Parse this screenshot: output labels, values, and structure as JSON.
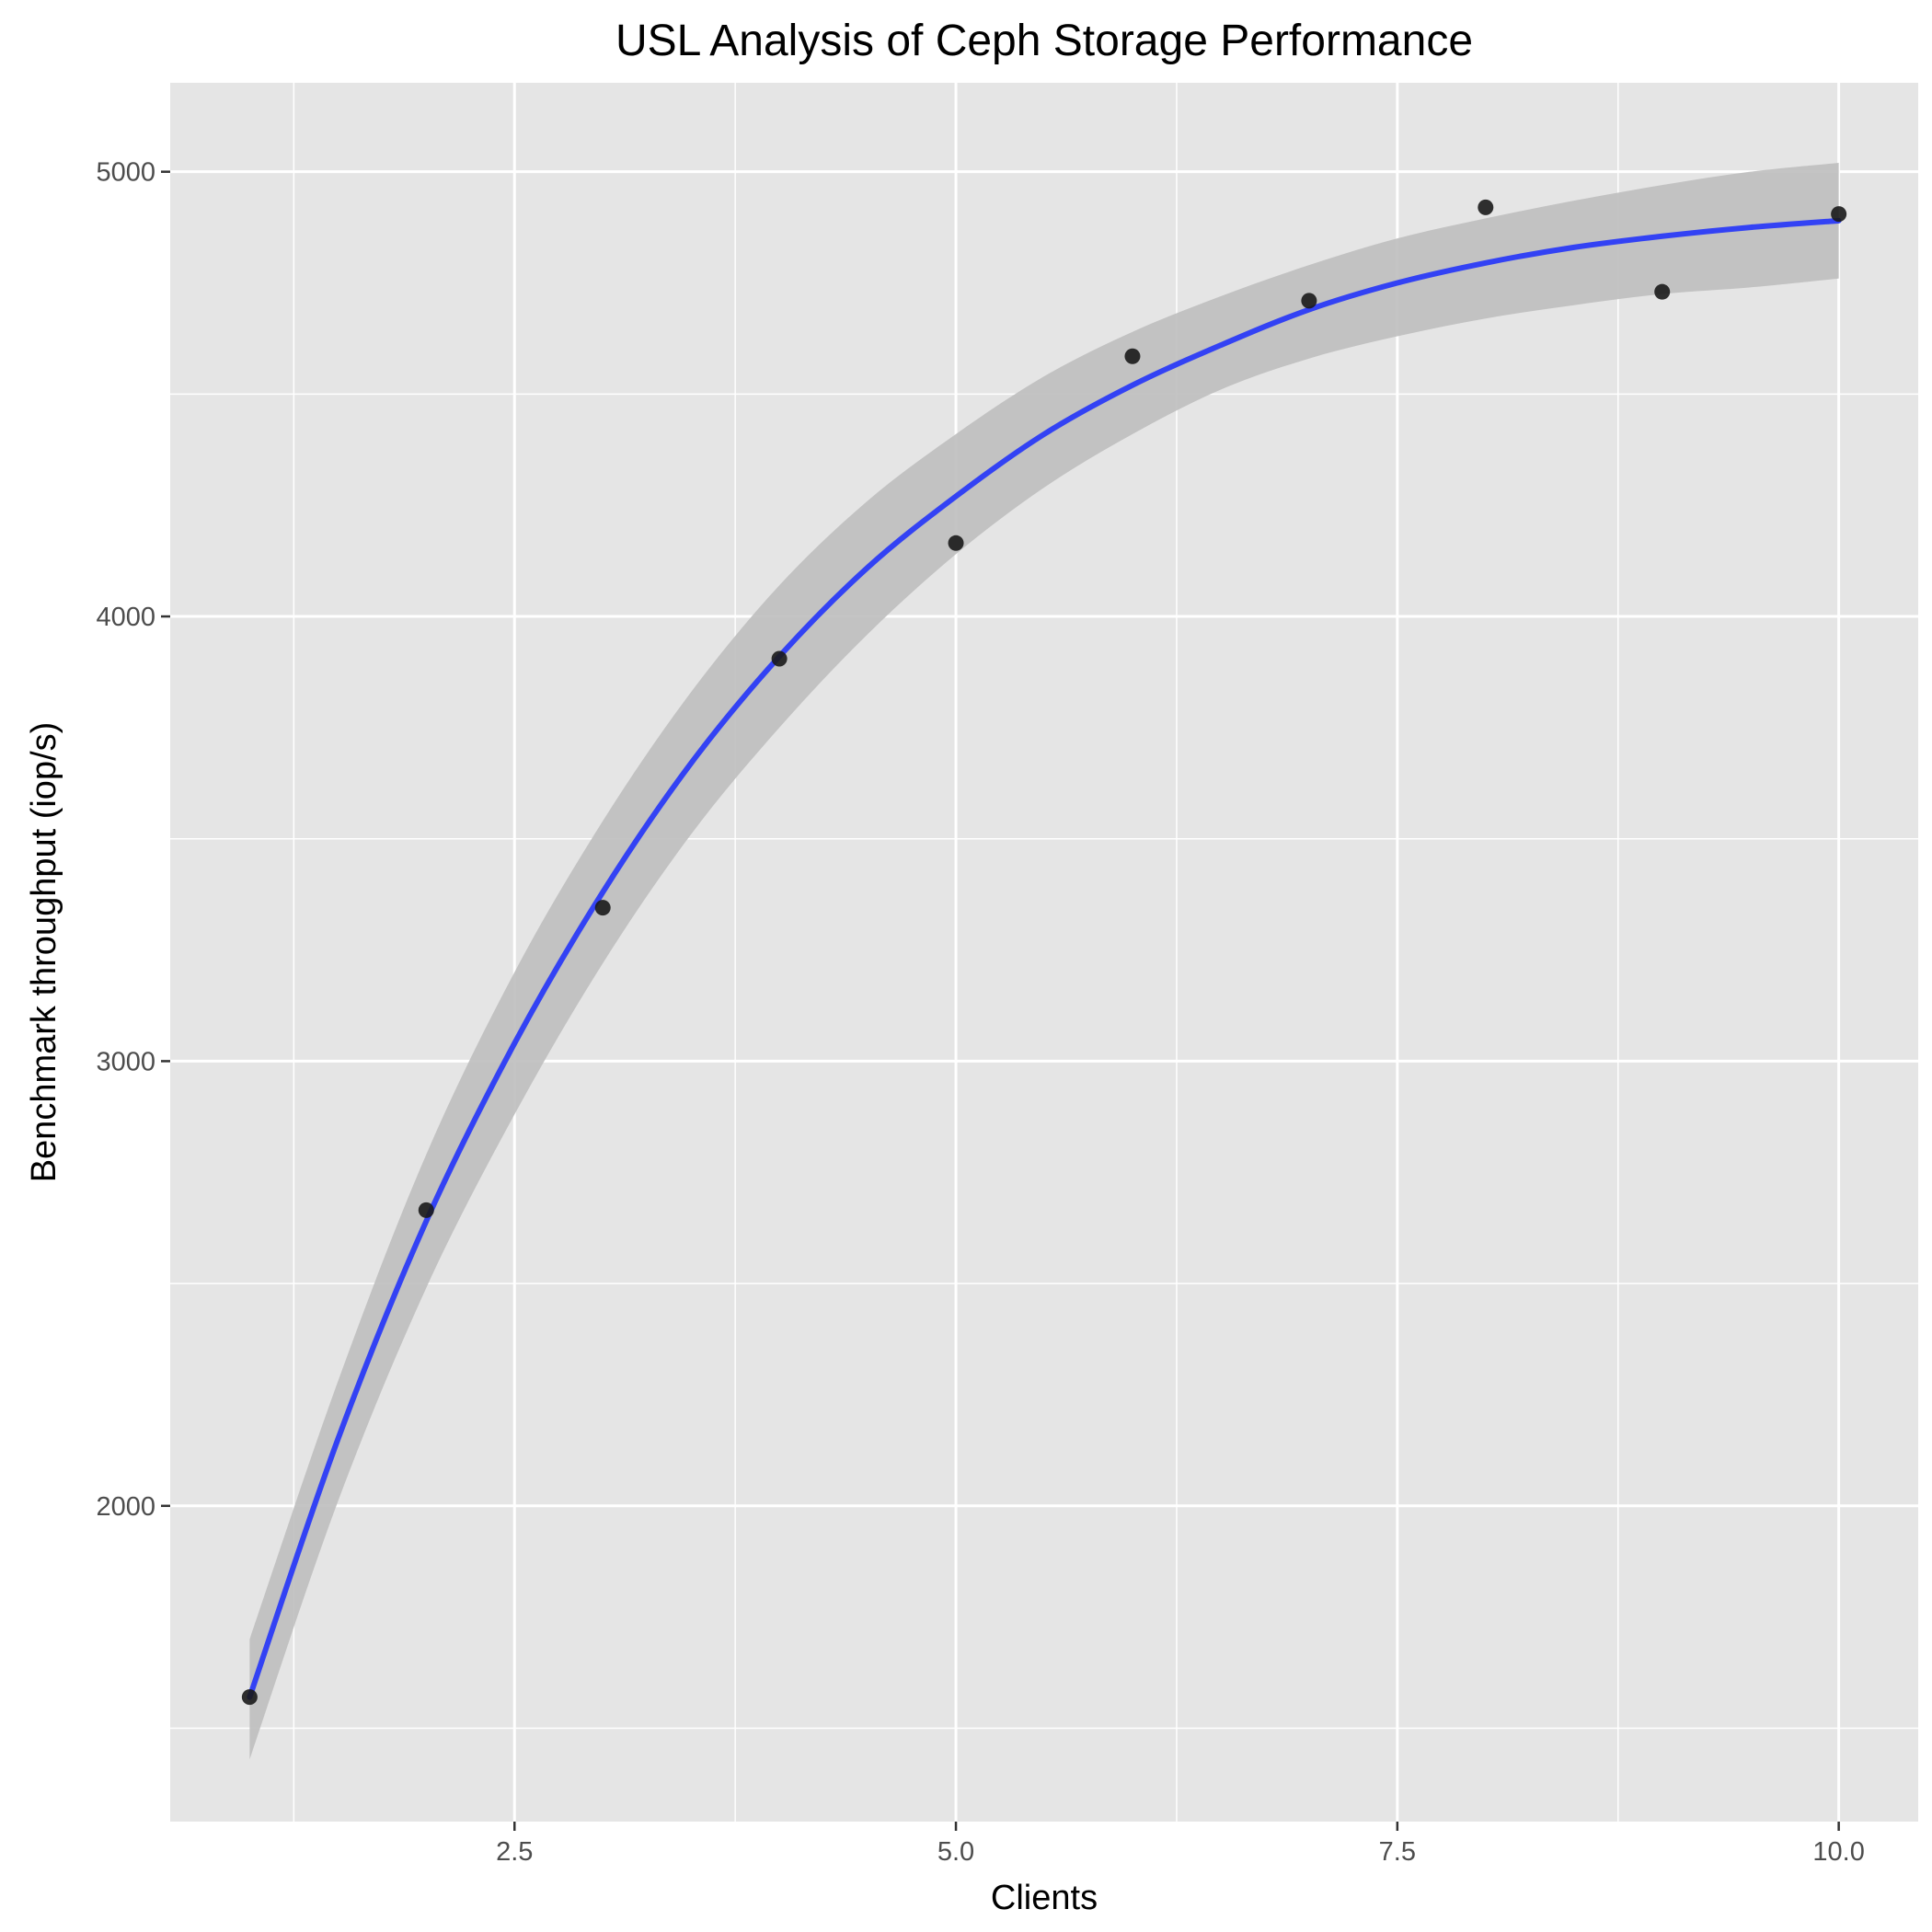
{
  "chart_data": {
    "type": "line",
    "title": "USL Analysis of Ceph Storage Performance",
    "xlabel": "Clients",
    "ylabel": "Benchmark throughput (iop/s)",
    "xlim": [
      0.55,
      10.45
    ],
    "ylim": [
      1290,
      5200
    ],
    "x_ticks": [
      2.5,
      5.0,
      7.5,
      10.0
    ],
    "x_tick_labels": [
      "2.5",
      "5.0",
      "7.5",
      "10.0"
    ],
    "y_ticks": [
      2000,
      3000,
      4000,
      5000
    ],
    "y_tick_labels": [
      "2000",
      "3000",
      "4000",
      "5000"
    ],
    "grid": true,
    "legend": "none",
    "series": [
      {
        "type": "scatter",
        "x": [
          1,
          2,
          3,
          4,
          5,
          6,
          7,
          8,
          9,
          10
        ],
        "y": [
          1570,
          2665,
          3345,
          3905,
          4165,
          4585,
          4710,
          4920,
          4730,
          4905
        ]
      },
      {
        "type": "line",
        "x": [
          1,
          1.5,
          2,
          2.5,
          3,
          3.5,
          4,
          4.5,
          5,
          5.5,
          6,
          6.5,
          7,
          7.5,
          8,
          8.5,
          9,
          9.5,
          10
        ],
        "y": [
          1570,
          2150,
          2640,
          3040,
          3380,
          3670,
          3910,
          4110,
          4270,
          4410,
          4520,
          4610,
          4690,
          4750,
          4795,
          4830,
          4855,
          4875,
          4890
        ],
        "band_lower": [
          1430,
          2010,
          2490,
          2880,
          3220,
          3510,
          3750,
          3960,
          4140,
          4290,
          4410,
          4510,
          4580,
          4630,
          4670,
          4700,
          4725,
          4740,
          4760
        ],
        "band_upper": [
          1700,
          2280,
          2790,
          3200,
          3540,
          3830,
          4070,
          4260,
          4410,
          4540,
          4640,
          4720,
          4790,
          4850,
          4895,
          4935,
          4970,
          5000,
          5020
        ]
      }
    ],
    "colors": {
      "panel": "#e5e5e5",
      "grid": "#ffffff",
      "band": "#bebebe",
      "line": "#3342f4",
      "point": "#1a1a1a"
    }
  }
}
